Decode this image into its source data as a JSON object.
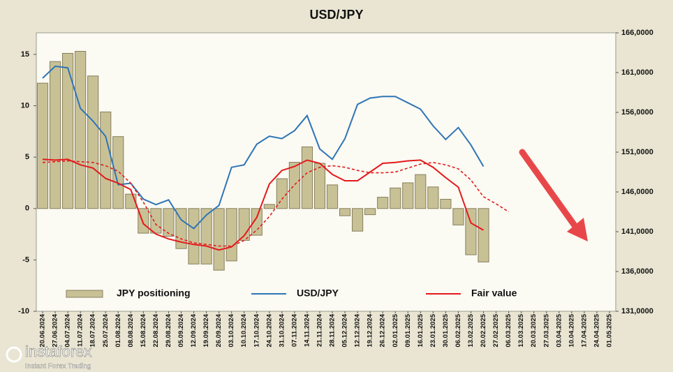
{
  "chart_data": {
    "type": "bar-line",
    "title": "USD/JPY",
    "categories": [
      "20.06.2024",
      "27.06.2024",
      "04.07.2024",
      "11.07.2024",
      "18.07.2024",
      "25.07.2024",
      "01.08.2024",
      "08.08.2024",
      "15.08.2024",
      "22.08.2024",
      "29.08.2024",
      "05.09.2024",
      "12.09.2024",
      "19.09.2024",
      "26.09.2024",
      "03.10.2024",
      "10.10.2024",
      "17.10.2024",
      "24.10.2024",
      "31.10.2024",
      "07.11.2024",
      "14.11.2024",
      "21.11.2024",
      "28.11.2024",
      "05.12.2024",
      "12.12.2024",
      "19.12.2024",
      "26.12.2024",
      "02.01.2025",
      "09.01.2025",
      "16.01.2025",
      "23.01.2025",
      "30.01.2025",
      "06.02.2025",
      "13.02.2025",
      "20.02.2025",
      "27.02.2025",
      "06.03.2025",
      "13.03.2025",
      "20.03.2025",
      "27.03.2025",
      "03.04.2025",
      "10.04.2025",
      "17.04.2025",
      "24.04.2025",
      "01.05.2025"
    ],
    "ylim": [
      -10,
      17.1
    ],
    "yticks": [
      -10,
      -5,
      0,
      5,
      10,
      15
    ],
    "y2lim": [
      131000,
      166000
    ],
    "y2ticks": [
      {
        "value": 131000,
        "label": "131,0000"
      },
      {
        "value": 136000,
        "label": "136,0000"
      },
      {
        "value": 141000,
        "label": "141,0000"
      },
      {
        "value": 146000,
        "label": "146,0000"
      },
      {
        "value": 151000,
        "label": "151,0000"
      },
      {
        "value": 156000,
        "label": "156,0000"
      },
      {
        "value": 161000,
        "label": "161,0000"
      },
      {
        "value": 166000,
        "label": "166,0000"
      }
    ],
    "series": [
      {
        "name": "JPY positioning",
        "type": "bar",
        "color": "#c9c196",
        "values": [
          12.2,
          14.3,
          15.1,
          15.3,
          12.9,
          9.4,
          7.0,
          1.4,
          -2.4,
          -2.4,
          -2.7,
          -3.9,
          -5.4,
          -5.4,
          -6.0,
          -5.1,
          -3.1,
          -2.6,
          0.4,
          2.9,
          4.5,
          6.0,
          4.4,
          2.3,
          -0.7,
          -2.2,
          -0.6,
          1.1,
          2.0,
          2.5,
          3.3,
          2.1,
          0.9,
          -1.6,
          -4.5,
          -5.2,
          null,
          null,
          null,
          null,
          null,
          null,
          null,
          null,
          null,
          null
        ]
      },
      {
        "name": "USD/JPY",
        "type": "line",
        "axis": "y2",
        "color": "#2e75b6",
        "values": [
          160300,
          161800,
          161600,
          156500,
          154900,
          153000,
          146900,
          147100,
          145100,
          144400,
          145000,
          142500,
          141400,
          143100,
          144300,
          149100,
          149400,
          152000,
          153000,
          152700,
          153700,
          155600,
          151400,
          150100,
          152700,
          157000,
          157800,
          158000,
          158000,
          157200,
          156400,
          154300,
          152600,
          154100,
          151900,
          149200,
          null,
          null,
          null,
          null,
          null,
          null,
          null,
          null,
          null,
          null
        ]
      },
      {
        "name": "Fair value",
        "type": "line",
        "axis": "y2",
        "color": "#e31a1c",
        "values": [
          150100,
          150000,
          150100,
          149400,
          149000,
          147700,
          147100,
          146300,
          142000,
          140700,
          140100,
          139700,
          139400,
          139200,
          138700,
          139100,
          140500,
          142800,
          147000,
          148700,
          149200,
          150000,
          149600,
          148200,
          147400,
          147400,
          148500,
          149600,
          149700,
          149900,
          150000,
          149100,
          147800,
          146600,
          142100,
          141200,
          null,
          null,
          null,
          null,
          null,
          null,
          null,
          null,
          null,
          null
        ]
      },
      {
        "type": "line",
        "axis": "y2",
        "color": "#e31a1c",
        "dashed": true,
        "values": [
          149700,
          149800,
          149900,
          149800,
          149700,
          149300,
          148600,
          147100,
          144700,
          141900,
          140800,
          140100,
          139600,
          139400,
          139200,
          139200,
          139900,
          141200,
          142900,
          145100,
          146900,
          148400,
          149100,
          149300,
          149100,
          148700,
          148400,
          148400,
          148500,
          149000,
          149500,
          149700,
          149400,
          148900,
          147500,
          145400,
          144500,
          143500,
          null,
          null,
          null,
          null,
          null,
          null,
          null,
          null
        ]
      }
    ]
  },
  "logo": {
    "name": "instaforex",
    "tagline": "Instant Forex Trading"
  }
}
